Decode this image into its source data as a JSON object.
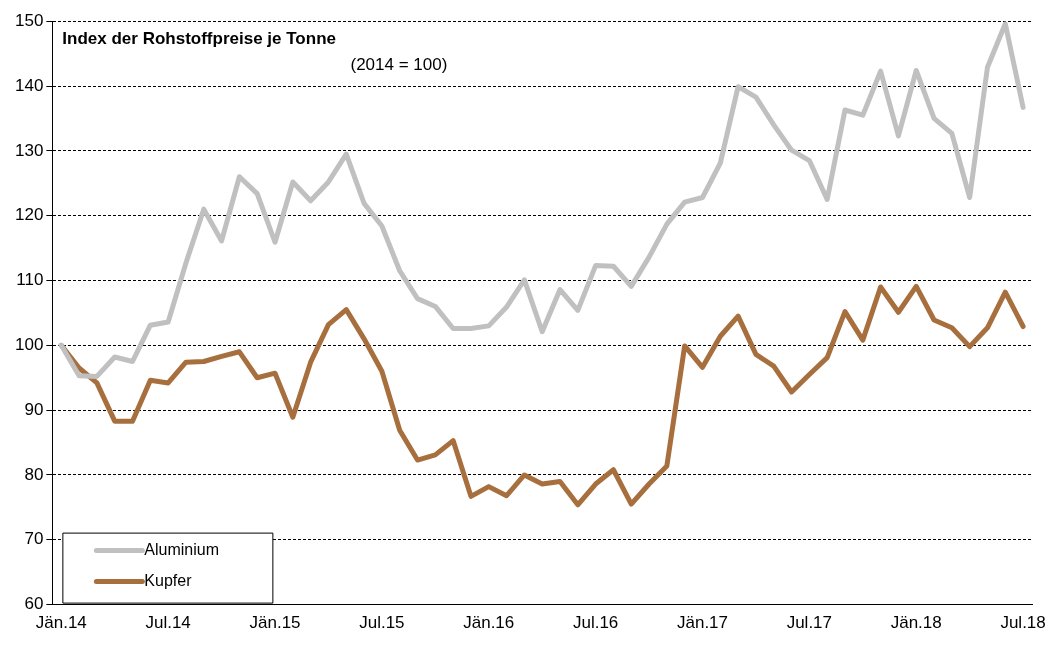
{
  "chart_data": {
    "type": "line",
    "title": "Index der Rohstoffpreise je Tonne",
    "subtitle": "(2014 = 100)",
    "categories": [
      "Jän.14",
      null,
      null,
      null,
      null,
      null,
      "Jul.14",
      null,
      null,
      null,
      null,
      null,
      "Jän.15",
      null,
      null,
      null,
      null,
      null,
      "Jul.15",
      null,
      null,
      null,
      null,
      null,
      "Jän.16",
      null,
      null,
      null,
      null,
      null,
      "Jul.16",
      null,
      null,
      null,
      null,
      null,
      "Jän.17",
      null,
      null,
      null,
      null,
      null,
      "Jul.17",
      null,
      null,
      null,
      null,
      null,
      "Jän.18",
      null,
      null,
      null,
      null,
      null,
      "Jul.18"
    ],
    "series": [
      {
        "name": "Aluminium",
        "color": "#c0c0c0",
        "values": [
          100,
          95.3,
          95.2,
          98.2,
          97.5,
          103.1,
          103.6,
          112.7,
          121,
          116.1,
          126,
          123.4,
          115.9,
          125.2,
          122.3,
          125.2,
          129.5,
          121.9,
          118.4,
          111.5,
          107.2,
          106,
          102.6,
          102.6,
          103,
          105.9,
          110.1,
          102.1,
          108.6,
          105.4,
          112.3,
          112.2,
          109.1,
          113.6,
          118.7,
          122.1,
          122.8,
          128.1,
          139.9,
          138.3,
          134,
          130.1,
          128.5,
          122.5,
          136.3,
          135.5,
          142.3,
          132.3,
          142.4,
          135,
          132.7,
          122.8,
          142.9,
          149.6,
          136.7
        ]
      },
      {
        "name": "Kupfer",
        "color": "#a86f3e",
        "values": [
          100,
          96.5,
          94.2,
          88.3,
          88.3,
          94.6,
          94.2,
          97.4,
          97.5,
          98.3,
          99,
          95,
          95.7,
          88.9,
          97.4,
          103.2,
          105.5,
          101,
          96,
          86.9,
          82.3,
          83.1,
          85.3,
          76.7,
          78.2,
          76.8,
          80,
          78.6,
          79,
          75.4,
          78.6,
          80.8,
          75.5,
          78.6,
          81.4,
          99.9,
          96.6,
          101.4,
          104.5,
          98.6,
          96.8,
          92.8,
          95.5,
          98.1,
          105.2,
          100.8,
          109,
          105.1,
          109.1,
          103.9,
          102.7,
          99.8,
          102.7,
          108.2,
          102.9
        ]
      }
    ],
    "ylim": [
      60,
      150
    ],
    "yticks": [
      60,
      70,
      80,
      90,
      100,
      110,
      120,
      130,
      140,
      150
    ],
    "grid": "y",
    "legend": "bottom left",
    "marker": "none",
    "line_style": "solid"
  }
}
